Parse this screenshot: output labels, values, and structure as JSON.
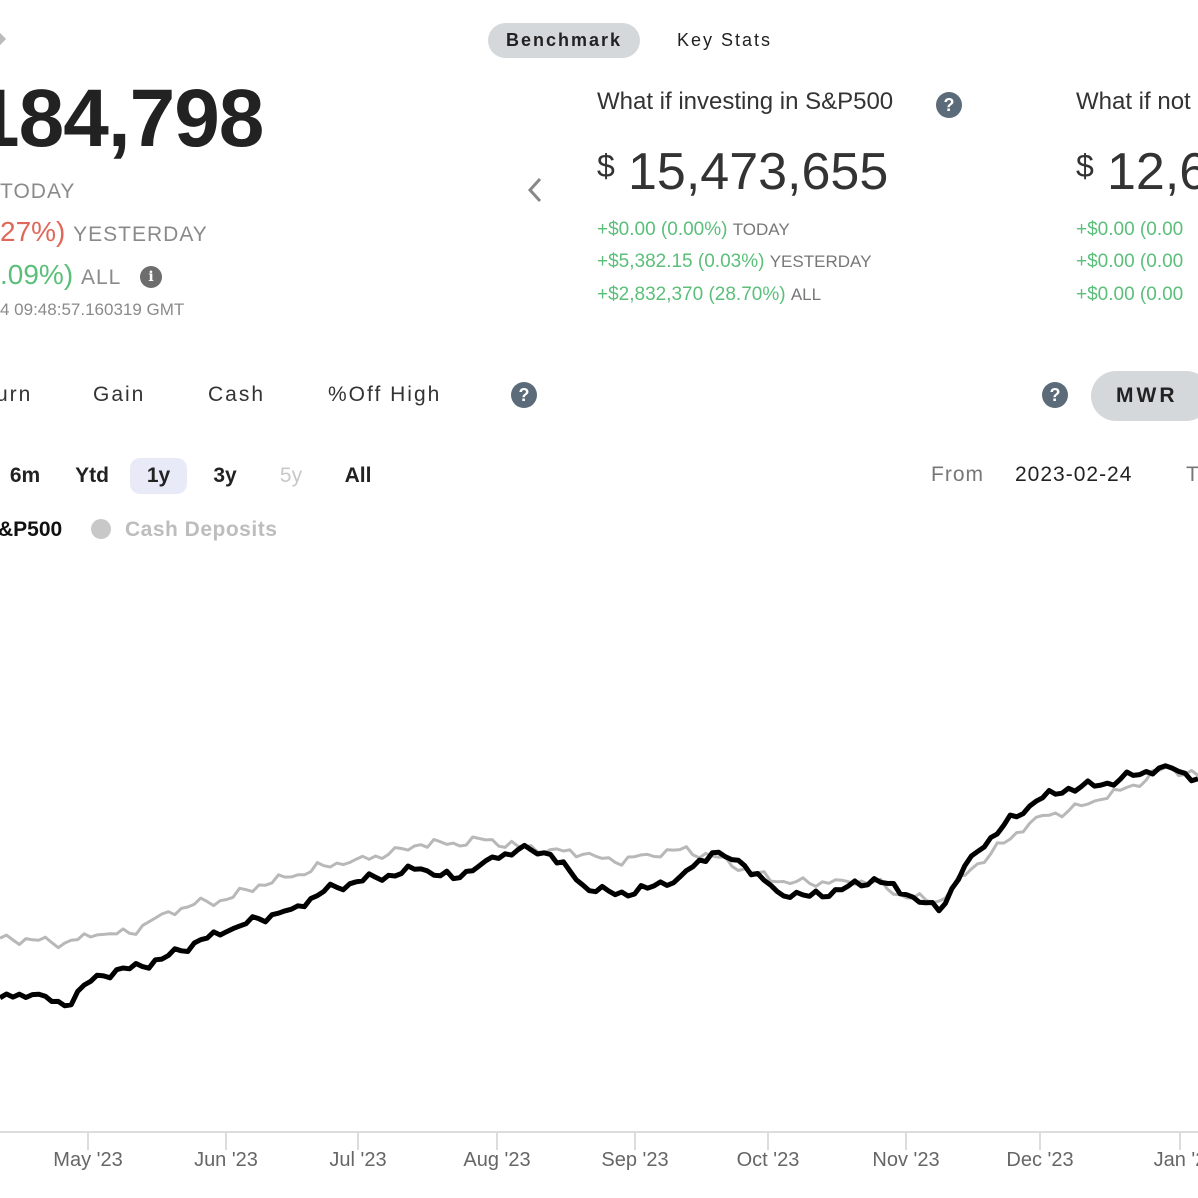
{
  "tabs": {
    "benchmark": "Benchmark",
    "key_stats": "Key Stats"
  },
  "portfolio": {
    "value": "184,798",
    "today_label": "TODAY",
    "yesterday_pct": "27%)",
    "yesterday_label": "YESTERDAY",
    "all_pct": ".09%)",
    "all_label": "ALL",
    "timestamp": "4 09:48:57.160319 GMT"
  },
  "cards": [
    {
      "title": "What if investing in S&P500",
      "currency": "$",
      "value": "15,473,655",
      "today": "+$0.00 (0.00%)",
      "today_label": "TODAY",
      "yesterday": "+$5,382.15 (0.03%)",
      "yesterday_label": "YESTERDAY",
      "all": "+$2,832,370 (28.70%)",
      "all_label": "ALL"
    },
    {
      "title": "What if not",
      "currency": "$",
      "value": "12,6",
      "today": "+$0.00 (0.00",
      "yesterday": "+$0.00 (0.00",
      "all": "+$0.00 (0.00"
    }
  ],
  "metric_tabs": [
    "urn",
    "Gain",
    "Cash",
    "%Off High"
  ],
  "mwr_label": "MWR",
  "ranges": [
    "6m",
    "Ytd",
    "1y",
    "3y",
    "5y",
    "All"
  ],
  "selected_range": "1y",
  "from_label": "From",
  "from_date": "2023-02-24",
  "to_label_partial": "T",
  "legend": {
    "portfolio_series": "&P500",
    "cash_series": "Cash Deposits"
  },
  "colors": {
    "portfolio_line": "#000000",
    "benchmark_line": "#b8b8b8",
    "positive": "#5bbf7a",
    "negative": "#e0685a",
    "active_pill": "#d4d8db"
  },
  "chart_data": {
    "type": "line",
    "x_tick_labels": [
      "May '23",
      "Jun '23",
      "Jul '23",
      "Aug '23",
      "Sep '23",
      "Oct '23",
      "Nov '23",
      "Dec '23",
      "Jan '2"
    ],
    "x": [
      "2023-04-20",
      "2023-04-27",
      "2023-05-04",
      "2023-05-11",
      "2023-05-18",
      "2023-05-25",
      "2023-06-01",
      "2023-06-08",
      "2023-06-15",
      "2023-06-22",
      "2023-06-29",
      "2023-07-06",
      "2023-07-13",
      "2023-07-20",
      "2023-07-27",
      "2023-08-03",
      "2023-08-10",
      "2023-08-17",
      "2023-08-24",
      "2023-08-31",
      "2023-09-07",
      "2023-09-14",
      "2023-09-21",
      "2023-09-28",
      "2023-10-05",
      "2023-10-12",
      "2023-10-19",
      "2023-10-26",
      "2023-11-02",
      "2023-11-09",
      "2023-11-16",
      "2023-11-23",
      "2023-11-30",
      "2023-12-07",
      "2023-12-14",
      "2023-12-21",
      "2023-12-28",
      "2024-01-04"
    ],
    "series": [
      {
        "name": "",
        "color": "#000000",
        "values": [
          0.0,
          0.02,
          -0.05,
          0.14,
          0.18,
          0.24,
          0.34,
          0.41,
          0.49,
          0.55,
          0.66,
          0.72,
          0.76,
          0.8,
          0.74,
          0.85,
          0.92,
          0.89,
          0.7,
          0.64,
          0.68,
          0.75,
          0.9,
          0.82,
          0.66,
          0.63,
          0.67,
          0.74,
          0.64,
          0.54,
          0.88,
          1.07,
          1.22,
          1.3,
          1.32,
          1.38,
          1.44,
          1.36
        ]
      },
      {
        "name": "",
        "color": "#b8b8b8",
        "values": [
          0.37,
          0.36,
          0.34,
          0.39,
          0.4,
          0.52,
          0.58,
          0.61,
          0.7,
          0.75,
          0.82,
          0.86,
          0.89,
          0.95,
          0.96,
          0.98,
          0.94,
          0.92,
          0.89,
          0.84,
          0.89,
          0.92,
          0.88,
          0.8,
          0.72,
          0.71,
          0.73,
          0.72,
          0.62,
          0.6,
          0.8,
          0.96,
          1.12,
          1.16,
          1.23,
          1.32,
          1.43,
          1.38
        ]
      }
    ]
  }
}
